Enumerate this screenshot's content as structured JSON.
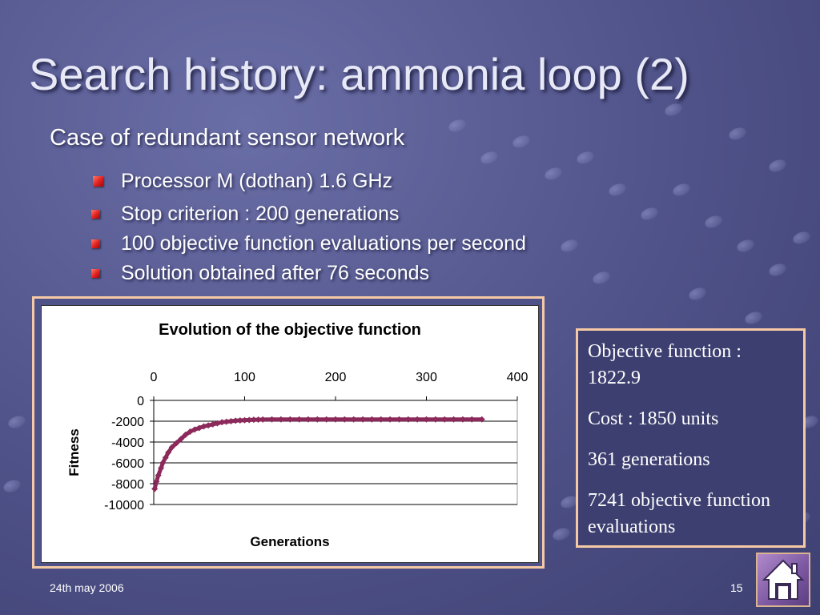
{
  "slide": {
    "title": "Search history: ammonia loop (2)",
    "subtitle": "Case of redundant sensor network",
    "bullets": [
      "Processor M (dothan) 1.6 GHz",
      "Stop criterion : 200 generations",
      "100 objective function evaluations per second",
      "Solution obtained after 76 seconds"
    ],
    "info": [
      "Objective function : 1822.9",
      "Cost : 1850 units",
      "361 generations",
      "7241 objective function evaluations"
    ],
    "footer_date": "24th may 2006",
    "page_number": "15",
    "home_icon": "home-icon"
  },
  "colors": {
    "accent_bullet": "#e02020",
    "series": "#8b2a5a",
    "frame": "#f6c9a6"
  },
  "chart_data": {
    "type": "scatter",
    "title": "Evolution of the objective function",
    "xlabel": "Generations",
    "ylabel": "Fitness",
    "xlim": [
      0,
      400
    ],
    "ylim": [
      -10000,
      0
    ],
    "x_ticks": [
      "0",
      "100",
      "200",
      "300",
      "400"
    ],
    "y_ticks": [
      "0",
      "-2000",
      "-4000",
      "-6000",
      "-8000",
      "-10000"
    ],
    "x_axis_position": "top",
    "grid": "horizontal",
    "legend": "none",
    "series": [
      {
        "marker": "diamond",
        "x": [
          1,
          3,
          5,
          8,
          10,
          13,
          16,
          20,
          25,
          30,
          35,
          40,
          45,
          50,
          55,
          60,
          65,
          70,
          75,
          80,
          85,
          90,
          95,
          100,
          105,
          110,
          115,
          120,
          130,
          140,
          150,
          160,
          170,
          180,
          190,
          200,
          210,
          220,
          230,
          240,
          250,
          260,
          270,
          280,
          290,
          300,
          310,
          320,
          330,
          340,
          350,
          361
        ],
        "y": [
          -8500,
          -7800,
          -7200,
          -6500,
          -6000,
          -5500,
          -5000,
          -4500,
          -4100,
          -3700,
          -3300,
          -3000,
          -2800,
          -2650,
          -2500,
          -2400,
          -2300,
          -2200,
          -2100,
          -2050,
          -2000,
          -1950,
          -1920,
          -1900,
          -1880,
          -1860,
          -1850,
          -1840,
          -1830,
          -1830,
          -1825,
          -1825,
          -1823,
          -1823,
          -1823,
          -1823,
          -1823,
          -1823,
          -1823,
          -1823,
          -1823,
          -1823,
          -1823,
          -1823,
          -1823,
          -1823,
          -1823,
          -1823,
          -1823,
          -1823,
          -1823,
          -1823
        ]
      }
    ]
  }
}
